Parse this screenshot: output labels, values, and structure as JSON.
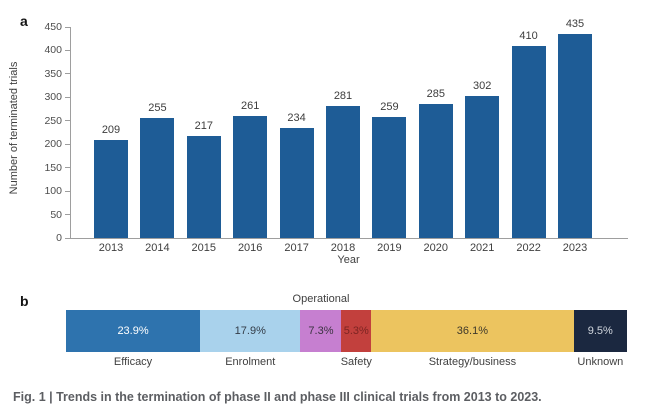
{
  "panels": {
    "a_label": "a",
    "b_label": "b"
  },
  "chart_data": [
    {
      "type": "bar",
      "title": "",
      "xlabel": "Year",
      "ylabel": "Number of terminated trials",
      "categories": [
        "2013",
        "2014",
        "2015",
        "2016",
        "2017",
        "2018",
        "2019",
        "2020",
        "2021",
        "2022",
        "2023"
      ],
      "values": [
        209,
        255,
        217,
        261,
        234,
        281,
        259,
        285,
        302,
        410,
        435
      ],
      "ylim": [
        0,
        450
      ],
      "ytick_step": 50,
      "bar_color": "#1e5c96",
      "value_label_color": "#3d3d3d",
      "grid": false,
      "legend": "none"
    },
    {
      "type": "stacked-bar",
      "annotation": "Operational",
      "segments": [
        {
          "label": "Efficacy",
          "value_pct": 23.9,
          "display": "23.9%",
          "color": "#2e73ae",
          "text_color": "#ffffff"
        },
        {
          "label": "Enrolment",
          "value_pct": 17.9,
          "display": "17.9%",
          "color": "#a9d2ec",
          "text_color": "#333c47"
        },
        {
          "label": "Operational",
          "value_pct": 7.3,
          "display": "7.3%",
          "color": "#c67fd0",
          "text_color": "#3a3340"
        },
        {
          "label": "Safety",
          "value_pct": 5.3,
          "display": "5.3%",
          "color": "#c2403d",
          "text_color": "#7c2422"
        },
        {
          "label": "Strategy/business",
          "value_pct": 36.1,
          "display": "36.1%",
          "color": "#ecc45f",
          "text_color": "#3e382b"
        },
        {
          "label": "Unknown",
          "value_pct": 9.5,
          "display": "9.5%",
          "color": "#1b2840",
          "text_color": "#d2d7de"
        }
      ]
    }
  ],
  "caption": "Fig. 1 | Trends in the termination of phase II and phase III clinical trials from 2013 to 2023."
}
